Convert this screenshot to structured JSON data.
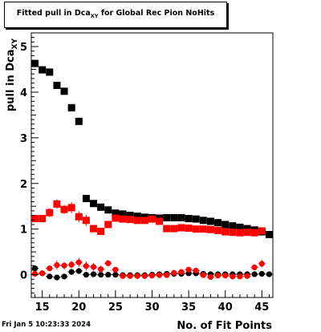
{
  "header": {
    "title_prefix": "Fitted pull in Dca",
    "title_sub": "XY",
    "title_suffix": " for Global Rec Pion NoHits"
  },
  "footer": {
    "timestamp": "Fri Jan  5 10:23:33 2024"
  },
  "chart_data": {
    "type": "scatter",
    "title": "Fitted pull in Dca_XY for Global Rec Pion NoHits",
    "xlabel": "No. of Fit Points",
    "ylabel": "pull in Dca_XY",
    "ylabel_main": "pull in Dca",
    "ylabel_sub": "XY",
    "xlim": [
      13.5,
      46.5
    ],
    "ylim": [
      -0.5,
      5.3
    ],
    "xticks": [
      "15",
      "20",
      "25",
      "30",
      "35",
      "40",
      "45"
    ],
    "yticks": [
      "0",
      "1",
      "2",
      "3",
      "4",
      "5"
    ],
    "grid": false,
    "legend": "none",
    "series": [
      {
        "color": "#000000",
        "marker": "square",
        "x": [
          14,
          15,
          16,
          17,
          18,
          19,
          20,
          21,
          22,
          23,
          24,
          25,
          26,
          27,
          28,
          29,
          30,
          31,
          32,
          33,
          34,
          35,
          36,
          37,
          38,
          39,
          40,
          41,
          42,
          43,
          44,
          45,
          46
        ],
        "y": [
          4.63,
          4.49,
          4.44,
          4.15,
          4.02,
          3.66,
          3.36,
          1.67,
          1.56,
          1.48,
          1.42,
          1.35,
          1.33,
          1.3,
          1.28,
          1.26,
          1.25,
          1.24,
          1.25,
          1.25,
          1.25,
          1.23,
          1.22,
          1.19,
          1.17,
          1.14,
          1.1,
          1.07,
          1.04,
          1.01,
          0.98,
          0.94,
          0.88
        ]
      },
      {
        "color": "#ff0000",
        "marker": "square",
        "x": [
          14,
          15,
          16,
          17,
          18,
          19,
          20,
          21,
          22,
          23,
          24,
          25,
          26,
          27,
          28,
          29,
          30,
          31,
          32,
          33,
          34,
          35,
          36,
          37,
          38,
          39,
          40,
          41,
          42,
          43,
          44,
          45
        ],
        "y": [
          1.23,
          1.23,
          1.36,
          1.55,
          1.43,
          1.47,
          1.27,
          1.19,
          1.01,
          0.95,
          1.1,
          1.24,
          1.22,
          1.21,
          1.19,
          1.19,
          1.22,
          1.17,
          1.01,
          1.01,
          1.03,
          1.02,
          1.0,
          1.0,
          0.99,
          0.97,
          0.94,
          0.93,
          0.92,
          0.93,
          0.92,
          0.96
        ],
        "yerr": [
          0.08,
          0.08,
          0.1,
          0.1,
          0.1,
          0.12,
          0.12,
          0.12,
          0.08,
          0.08,
          0.07,
          0.05,
          0.05,
          0.05,
          0.05,
          0.05,
          0.04,
          0.04,
          0.04,
          0.04,
          0.04,
          0.04,
          0.04,
          0.04,
          0.04,
          0.04,
          0.04,
          0.04,
          0.04,
          0.04,
          0.05,
          0.06
        ]
      },
      {
        "color": "#000000",
        "marker": "circle",
        "x": [
          14,
          15,
          16,
          17,
          18,
          19,
          20,
          21,
          22,
          23,
          24,
          25,
          26,
          27,
          28,
          29,
          30,
          31,
          32,
          33,
          34,
          35,
          36,
          37,
          38,
          39,
          40,
          41,
          42,
          43,
          44,
          45,
          46
        ],
        "y": [
          0.14,
          0.03,
          -0.04,
          -0.06,
          -0.04,
          0.06,
          0.08,
          0.0,
          0.01,
          0.0,
          0.0,
          0.0,
          -0.01,
          -0.01,
          -0.01,
          -0.01,
          0.0,
          0.01,
          0.02,
          0.02,
          0.02,
          0.03,
          0.03,
          0.02,
          0.01,
          0.01,
          0.01,
          0.01,
          0.01,
          0.01,
          0.01,
          0.02,
          0.01
        ]
      },
      {
        "color": "#ff0000",
        "marker": "circle",
        "x": [
          14,
          15,
          16,
          17,
          18,
          19,
          20,
          21,
          22,
          23,
          24,
          25,
          26,
          27,
          28,
          29,
          30,
          31,
          32,
          33,
          34,
          35,
          36,
          37,
          38,
          39,
          40,
          41,
          42,
          43,
          44,
          45
        ],
        "y": [
          0.02,
          0.03,
          0.14,
          0.21,
          0.2,
          0.22,
          0.27,
          0.19,
          0.17,
          0.12,
          0.25,
          0.11,
          -0.03,
          -0.03,
          -0.03,
          -0.03,
          -0.02,
          -0.01,
          -0.01,
          0.04,
          0.06,
          0.11,
          0.09,
          -0.01,
          -0.05,
          -0.02,
          -0.02,
          -0.04,
          -0.04,
          -0.03,
          0.16,
          0.24
        ],
        "yerr": [
          0.05,
          0.05,
          0.05,
          0.1,
          0.08,
          0.08,
          0.1,
          0.1,
          0.08,
          0.08,
          0.07,
          0.05,
          0.04,
          0.04,
          0.04,
          0.04,
          0.04,
          0.04,
          0.04,
          0.04,
          0.04,
          0.04,
          0.04,
          0.04,
          0.04,
          0.04,
          0.04,
          0.04,
          0.04,
          0.04,
          0.06,
          0.08
        ]
      }
    ]
  }
}
